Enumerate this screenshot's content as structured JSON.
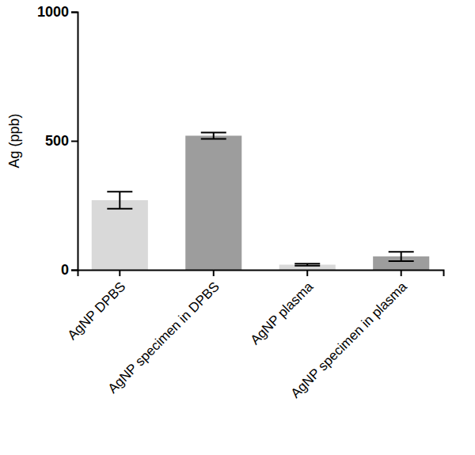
{
  "chart_data": {
    "type": "bar",
    "y_label": "Ag (ppb)",
    "categories": [
      "AgNP DPBS",
      "AgNP specimen in DPBS",
      "AgNP plasma",
      "AgNP specimen in plasma"
    ],
    "values": [
      270,
      520,
      20,
      52
    ],
    "errors": [
      33,
      12,
      4,
      18
    ],
    "colors": [
      "#d9d9d9",
      "#9d9d9d",
      "#d9d9d9",
      "#9d9d9d"
    ],
    "ylim": [
      0,
      1000
    ],
    "yticks": [
      0,
      500,
      1000
    ],
    "grid": false
  }
}
